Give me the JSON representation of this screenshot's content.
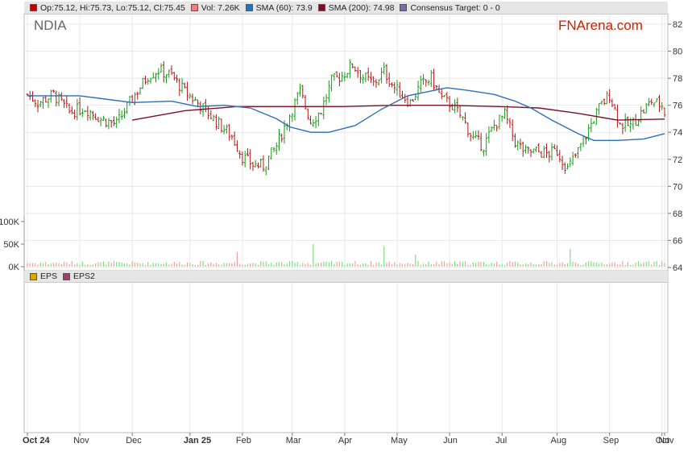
{
  "legend": {
    "ohlc": "Op:75.12, Hi:75.73, Lo:75.12, Cl:75.45",
    "vol": "Vol: 7.26K",
    "sma60": "SMA (60): 73.9",
    "sma200": "SMA (200): 74.98",
    "consensus": "Consensus Target: 0 - 0"
  },
  "eps_legend": {
    "eps": "EPS",
    "eps2": "EPS2"
  },
  "ticker": "NDIA",
  "brand": "FNArena.com",
  "colors": {
    "up": "#1a9a1a",
    "down": "#b01818",
    "sma60": "#2f6fb5",
    "sma200": "#7a1226",
    "vol_up": "#7fdf7f",
    "vol_down": "#f0a0a0",
    "grid": "#e8e8e8",
    "ohlc_swatch": "#c00000",
    "vol_swatch": "#f08080",
    "sma60_swatch": "#2f6fb5",
    "sma200_swatch": "#7a1226",
    "consensus_swatch": "#7070b0",
    "eps_swatch": "#d4aa00",
    "eps2_swatch": "#a04070"
  },
  "chart_data": {
    "type": "candlestick",
    "price_axis": {
      "ticks": [
        82,
        80,
        78,
        76,
        74,
        72,
        70,
        68,
        66,
        64
      ],
      "ylim": [
        64,
        83
      ]
    },
    "volume_axis": {
      "ticks": [
        "100K",
        "50K",
        "0K"
      ],
      "ylim": [
        0,
        100000
      ]
    },
    "x_labels": [
      "Oct 24",
      "Nov",
      "Dec",
      "Jan 25",
      "Feb",
      "Mar",
      "Apr",
      "May",
      "Jun",
      "Jul",
      "Aug",
      "Sep",
      "Oct",
      "Nov"
    ],
    "bold_labels": [
      "Oct 24",
      "Jan 25"
    ],
    "price_keypoints": [
      [
        0,
        76.8
      ],
      [
        4,
        76.2
      ],
      [
        10,
        76.8
      ],
      [
        16,
        75.5
      ],
      [
        22,
        75.8
      ],
      [
        28,
        75.0
      ],
      [
        34,
        74.6
      ],
      [
        40,
        76.5
      ],
      [
        46,
        78.2
      ],
      [
        50,
        78.6
      ],
      [
        55,
        78.2
      ],
      [
        60,
        77.0
      ],
      [
        66,
        76.0
      ],
      [
        72,
        74.8
      ],
      [
        78,
        73.7
      ],
      [
        82,
        72.2
      ],
      [
        86,
        71.6
      ],
      [
        90,
        71.5
      ],
      [
        95,
        73.0
      ],
      [
        100,
        75.3
      ],
      [
        104,
        77.0
      ],
      [
        108,
        74.8
      ],
      [
        112,
        75.6
      ],
      [
        116,
        77.8
      ],
      [
        120,
        78.2
      ],
      [
        124,
        79.0
      ],
      [
        128,
        78.1
      ],
      [
        132,
        77.6
      ],
      [
        136,
        78.5
      ],
      [
        140,
        77.3
      ],
      [
        146,
        76.2
      ],
      [
        150,
        77.5
      ],
      [
        154,
        78.0
      ],
      [
        158,
        76.5
      ],
      [
        162,
        76.0
      ],
      [
        166,
        75.0
      ],
      [
        170,
        73.5
      ],
      [
        174,
        73.0
      ],
      [
        178,
        74.5
      ],
      [
        182,
        75.3
      ],
      [
        186,
        73.3
      ],
      [
        190,
        72.5
      ],
      [
        194,
        72.6
      ],
      [
        198,
        72.4
      ],
      [
        202,
        72.6
      ],
      [
        206,
        71.3
      ],
      [
        210,
        72.6
      ],
      [
        214,
        74.2
      ],
      [
        218,
        75.8
      ],
      [
        222,
        76.8
      ],
      [
        226,
        74.6
      ],
      [
        230,
        74.5
      ],
      [
        234,
        75.4
      ],
      [
        238,
        76.3
      ],
      [
        242,
        76.0
      ],
      [
        243,
        75.45
      ]
    ],
    "sma60": [
      [
        0,
        76.7
      ],
      [
        20,
        76.7
      ],
      [
        40,
        76.2
      ],
      [
        55,
        76.3
      ],
      [
        65,
        75.9
      ],
      [
        75,
        76.0
      ],
      [
        85,
        75.8
      ],
      [
        95,
        75.0
      ],
      [
        100,
        74.4
      ],
      [
        108,
        74.0
      ],
      [
        115,
        74.0
      ],
      [
        125,
        74.5
      ],
      [
        135,
        75.7
      ],
      [
        145,
        76.7
      ],
      [
        160,
        77.3
      ],
      [
        168,
        77.1
      ],
      [
        178,
        76.8
      ],
      [
        186,
        76.3
      ],
      [
        192,
        75.8
      ],
      [
        200,
        74.9
      ],
      [
        210,
        73.9
      ],
      [
        216,
        73.4
      ],
      [
        225,
        73.4
      ],
      [
        235,
        73.5
      ],
      [
        243,
        73.9
      ]
    ],
    "sma200": [
      [
        40,
        74.9
      ],
      [
        60,
        75.6
      ],
      [
        80,
        75.9
      ],
      [
        100,
        75.9
      ],
      [
        120,
        75.9
      ],
      [
        140,
        76.0
      ],
      [
        160,
        76.0
      ],
      [
        180,
        75.9
      ],
      [
        195,
        75.8
      ],
      [
        210,
        75.4
      ],
      [
        225,
        74.9
      ],
      [
        243,
        74.98
      ]
    ],
    "volume_spikes": [
      [
        17,
        0.07
      ],
      [
        46,
        0.06
      ],
      [
        80,
        0.18
      ],
      [
        109,
        0.28
      ],
      [
        136,
        0.25
      ],
      [
        148,
        0.15
      ],
      [
        207,
        0.22
      ]
    ],
    "eps_series": [
      "EPS",
      "EPS2"
    ]
  }
}
